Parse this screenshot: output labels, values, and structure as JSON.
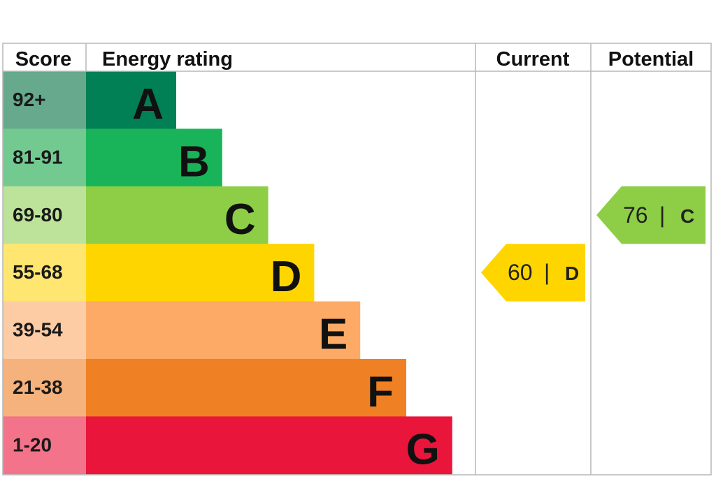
{
  "chart_data": {
    "type": "bar",
    "headers": {
      "score": "Score",
      "rating": "Energy rating",
      "current": "Current",
      "potential": "Potential"
    },
    "bands": [
      {
        "letter": "A",
        "range": "92+",
        "min": 92,
        "max": 100,
        "color": "#008054",
        "score_bg": "#66a98d"
      },
      {
        "letter": "B",
        "range": "81-91",
        "min": 81,
        "max": 91,
        "color": "#19b459",
        "score_bg": "#73ca91"
      },
      {
        "letter": "C",
        "range": "69-80",
        "min": 69,
        "max": 80,
        "color": "#8dce46",
        "score_bg": "#bde39a"
      },
      {
        "letter": "D",
        "range": "55-68",
        "min": 55,
        "max": 68,
        "color": "#ffd500",
        "score_bg": "#ffe670"
      },
      {
        "letter": "E",
        "range": "39-54",
        "min": 39,
        "max": 54,
        "color": "#fcaa65",
        "score_bg": "#fdcca4"
      },
      {
        "letter": "F",
        "range": "21-38",
        "min": 21,
        "max": 38,
        "color": "#ef8023",
        "score_bg": "#f5b27c"
      },
      {
        "letter": "G",
        "range": "1-20",
        "min": 1,
        "max": 20,
        "color": "#e9153b",
        "score_bg": "#f2738a"
      }
    ],
    "current": {
      "score": 60,
      "letter": "D",
      "separator": "|",
      "color": "#ffd500"
    },
    "potential": {
      "score": 76,
      "letter": "C",
      "separator": "|",
      "color": "#8dce46"
    }
  }
}
